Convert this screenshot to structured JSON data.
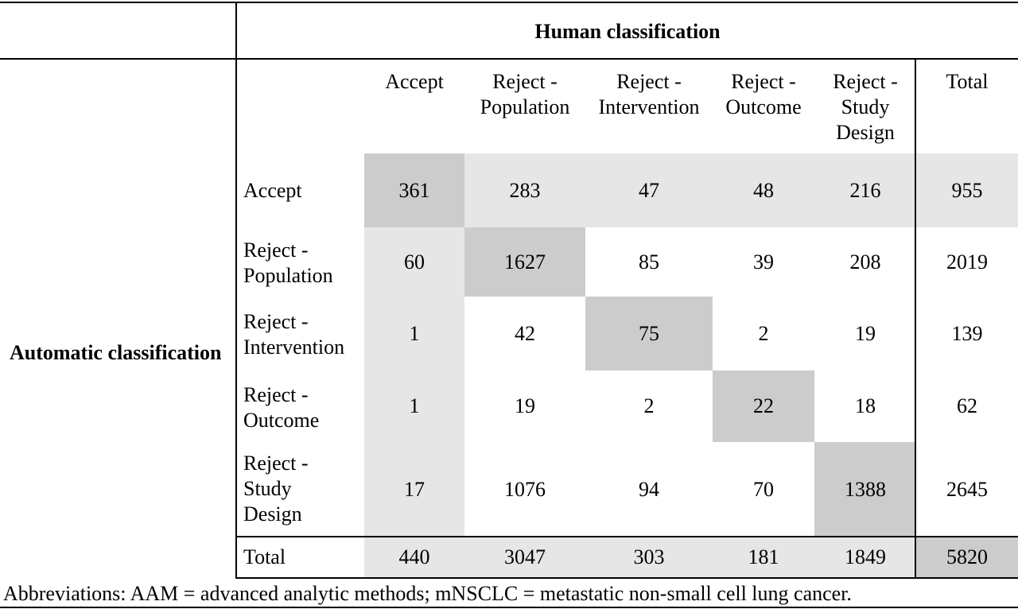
{
  "table": {
    "top_header": "Human classification",
    "side_header": "Automatic classification",
    "columns": [
      [
        "Accept"
      ],
      [
        "Reject -",
        "Population"
      ],
      [
        "Reject -",
        "Intervention"
      ],
      [
        "Reject -",
        "Outcome"
      ],
      [
        "Reject -",
        "Study",
        "Design"
      ],
      [
        "Total"
      ]
    ],
    "rows": [
      {
        "label": [
          "Accept"
        ],
        "values": [
          "361",
          "283",
          "47",
          "48",
          "216",
          "955"
        ]
      },
      {
        "label": [
          "Reject -",
          "Population"
        ],
        "values": [
          "60",
          "1627",
          "85",
          "39",
          "208",
          "2019"
        ]
      },
      {
        "label": [
          "Reject -",
          "Intervention"
        ],
        "values": [
          "1",
          "42",
          "75",
          "2",
          "19",
          "139"
        ]
      },
      {
        "label": [
          "Reject -",
          "Outcome"
        ],
        "values": [
          "1",
          "19",
          "2",
          "22",
          "18",
          "62"
        ]
      },
      {
        "label": [
          "Reject -",
          "Study",
          "Design"
        ],
        "values": [
          "17",
          "1076",
          "94",
          "70",
          "1388",
          "2645"
        ]
      }
    ],
    "total_row": {
      "label": [
        "Total"
      ],
      "values": [
        "440",
        "3047",
        "303",
        "181",
        "1849",
        "5820"
      ]
    }
  },
  "footnote": "Abbreviations: AAM = advanced analytic methods; mNSCLC = metastatic non-small cell lung cancer."
}
